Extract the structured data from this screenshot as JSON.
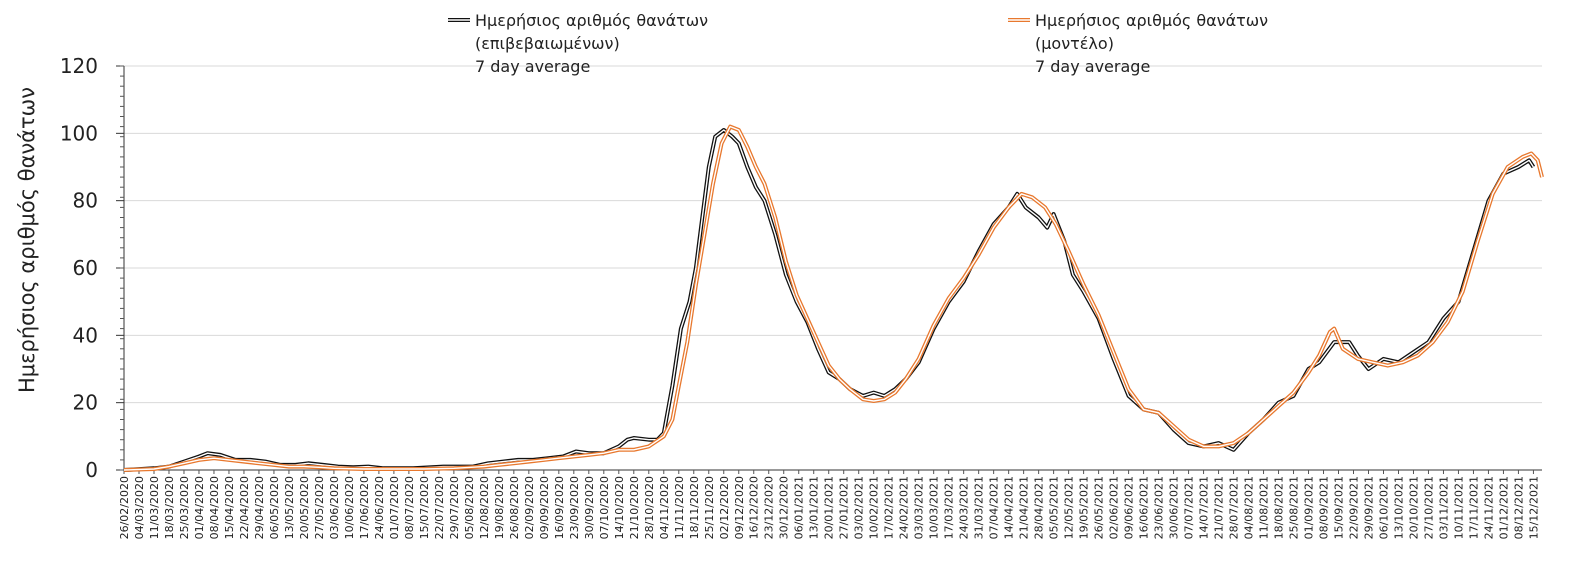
{
  "chart_data": {
    "type": "line",
    "title": "",
    "xlabel": "",
    "ylabel": "Ημερήσιος αριθμός θανάτων",
    "ylim": [
      0,
      120
    ],
    "yticks": [
      0,
      20,
      40,
      60,
      80,
      100,
      120
    ],
    "grid": "horizontal",
    "legend_position": "top",
    "x_start": "26/02/2020",
    "x_end": "19/12/2021",
    "xtick_labels": [
      "26/02/2020",
      "04/03/2020",
      "11/03/2020",
      "18/03/2020",
      "25/03/2020",
      "01/04/2020",
      "08/04/2020",
      "15/04/2020",
      "22/04/2020",
      "29/04/2020",
      "06/05/2020",
      "13/05/2020",
      "20/05/2020",
      "27/05/2020",
      "03/06/2020",
      "10/06/2020",
      "17/06/2020",
      "24/06/2020",
      "01/07/2020",
      "08/07/2020",
      "15/07/2020",
      "22/07/2020",
      "29/07/2020",
      "05/08/2020",
      "12/08/2020",
      "19/08/2020",
      "26/08/2020",
      "02/09/2020",
      "09/09/2020",
      "16/09/2020",
      "23/09/2020",
      "30/09/2020",
      "07/10/2020",
      "14/10/2020",
      "21/10/2020",
      "28/10/2020",
      "04/11/2020",
      "11/11/2020",
      "18/11/2020",
      "25/11/2020",
      "02/12/2020",
      "09/12/2020",
      "16/12/2020",
      "23/12/2020",
      "30/12/2020",
      "06/01/2021",
      "13/01/2021",
      "20/01/2021",
      "27/01/2021",
      "03/02/2021",
      "10/02/2021",
      "17/02/2021",
      "24/02/2021",
      "03/03/2021",
      "10/03/2021",
      "17/03/2021",
      "24/03/2021",
      "31/03/2021",
      "07/04/2021",
      "14/04/2021",
      "21/04/2021",
      "28/04/2021",
      "05/05/2021",
      "12/05/2021",
      "19/05/2021",
      "26/05/2021",
      "02/06/2021",
      "09/06/2021",
      "16/06/2021",
      "23/06/2021",
      "30/06/2021",
      "07/07/2021",
      "14/07/2021",
      "21/07/2021",
      "28/07/2021",
      "04/08/2021",
      "11/08/2021",
      "18/08/2021",
      "25/08/2021",
      "01/09/2021",
      "08/09/2021",
      "15/09/2021",
      "22/09/2021",
      "29/09/2021",
      "06/10/2021",
      "13/10/2021",
      "20/10/2021",
      "27/10/2021",
      "03/11/2021",
      "10/11/2021",
      "17/11/2021",
      "24/11/2021",
      "01/12/2021",
      "08/12/2021",
      "15/12/2021"
    ],
    "series": [
      {
        "name": "Ημερήσιος αριθμός θανάτων (επιβεβαιωμένων) 7 day average",
        "legend_lines": [
          "Ημερήσιος αριθμός θανάτων",
          "(επιβεβαιωμένων)",
          "7 day average"
        ],
        "color": "#111111",
        "style": "double-outline",
        "points": [
          [
            "26/02/2020",
            0
          ],
          [
            "11/03/2020",
            0.5
          ],
          [
            "18/03/2020",
            1
          ],
          [
            "25/03/2020",
            2.5
          ],
          [
            "01/04/2020",
            4
          ],
          [
            "05/04/2020",
            5
          ],
          [
            "11/04/2020",
            4.5
          ],
          [
            "18/04/2020",
            3
          ],
          [
            "25/04/2020",
            3
          ],
          [
            "02/05/2020",
            2.5
          ],
          [
            "09/05/2020",
            1.5
          ],
          [
            "16/05/2020",
            1.5
          ],
          [
            "22/05/2020",
            2
          ],
          [
            "29/05/2020",
            1.5
          ],
          [
            "05/06/2020",
            1
          ],
          [
            "12/06/2020",
            0.8
          ],
          [
            "19/06/2020",
            1
          ],
          [
            "26/06/2020",
            0.5
          ],
          [
            "10/07/2020",
            0.5
          ],
          [
            "24/07/2020",
            1
          ],
          [
            "07/08/2020",
            1
          ],
          [
            "14/08/2020",
            2
          ],
          [
            "21/08/2020",
            2.5
          ],
          [
            "28/08/2020",
            3
          ],
          [
            "04/09/2020",
            3
          ],
          [
            "11/09/2020",
            3.5
          ],
          [
            "18/09/2020",
            4
          ],
          [
            "24/09/2020",
            5.5
          ],
          [
            "30/09/2020",
            5
          ],
          [
            "07/10/2020",
            5
          ],
          [
            "14/10/2020",
            7
          ],
          [
            "18/10/2020",
            9
          ],
          [
            "21/10/2020",
            9.5
          ],
          [
            "28/10/2020",
            9
          ],
          [
            "01/11/2020",
            9
          ],
          [
            "04/11/2020",
            11
          ],
          [
            "08/11/2020",
            25
          ],
          [
            "12/11/2020",
            42
          ],
          [
            "16/11/2020",
            50
          ],
          [
            "19/11/2020",
            60
          ],
          [
            "22/11/2020",
            75
          ],
          [
            "25/11/2020",
            90
          ],
          [
            "28/11/2020",
            99
          ],
          [
            "02/12/2020",
            101
          ],
          [
            "06/12/2020",
            99
          ],
          [
            "09/12/2020",
            97
          ],
          [
            "13/12/2020",
            90
          ],
          [
            "17/12/2020",
            84
          ],
          [
            "21/12/2020",
            80
          ],
          [
            "26/12/2020",
            70
          ],
          [
            "31/12/2020",
            58
          ],
          [
            "05/01/2021",
            50
          ],
          [
            "10/01/2021",
            44
          ],
          [
            "15/01/2021",
            36
          ],
          [
            "20/01/2021",
            29
          ],
          [
            "25/01/2021",
            27
          ],
          [
            "30/01/2021",
            24
          ],
          [
            "05/02/2021",
            22
          ],
          [
            "10/02/2021",
            23
          ],
          [
            "15/02/2021",
            22
          ],
          [
            "20/02/2021",
            24
          ],
          [
            "25/02/2021",
            27
          ],
          [
            "03/03/2021",
            32
          ],
          [
            "10/03/2021",
            42
          ],
          [
            "17/03/2021",
            50
          ],
          [
            "24/03/2021",
            56
          ],
          [
            "31/03/2021",
            65
          ],
          [
            "07/04/2021",
            73
          ],
          [
            "14/04/2021",
            78
          ],
          [
            "18/04/2021",
            82
          ],
          [
            "22/04/2021",
            78
          ],
          [
            "28/04/2021",
            75
          ],
          [
            "02/05/2021",
            72
          ],
          [
            "05/05/2021",
            76
          ],
          [
            "10/05/2021",
            68
          ],
          [
            "14/05/2021",
            58
          ],
          [
            "19/05/2021",
            53
          ],
          [
            "26/05/2021",
            45
          ],
          [
            "02/06/2021",
            33
          ],
          [
            "09/06/2021",
            22
          ],
          [
            "16/06/2021",
            18
          ],
          [
            "23/06/2021",
            17
          ],
          [
            "30/06/2021",
            12
          ],
          [
            "07/07/2021",
            8
          ],
          [
            "14/07/2021",
            7
          ],
          [
            "21/07/2021",
            8
          ],
          [
            "28/07/2021",
            6
          ],
          [
            "04/08/2021",
            11
          ],
          [
            "11/08/2021",
            15
          ],
          [
            "18/08/2021",
            20
          ],
          [
            "25/08/2021",
            22
          ],
          [
            "01/09/2021",
            30
          ],
          [
            "06/09/2021",
            32
          ],
          [
            "13/09/2021",
            38
          ],
          [
            "20/09/2021",
            38
          ],
          [
            "24/09/2021",
            34
          ],
          [
            "29/09/2021",
            30
          ],
          [
            "06/10/2021",
            33
          ],
          [
            "13/10/2021",
            32
          ],
          [
            "20/10/2021",
            35
          ],
          [
            "27/10/2021",
            38
          ],
          [
            "03/11/2021",
            45
          ],
          [
            "10/11/2021",
            50
          ],
          [
            "17/11/2021",
            65
          ],
          [
            "24/11/2021",
            80
          ],
          [
            "01/12/2021",
            88
          ],
          [
            "08/12/2021",
            90
          ],
          [
            "13/12/2021",
            92
          ],
          [
            "15/12/2021",
            90
          ]
        ]
      },
      {
        "name": "Ημερήσιος αριθμός θανάτων (μοντέλο) 7 day average",
        "legend_lines": [
          "Ημερήσιος αριθμός θανάτων",
          "(μοντέλο)",
          "7 day average"
        ],
        "color": "#E8782E",
        "style": "double-outline",
        "points": [
          [
            "26/02/2020",
            0
          ],
          [
            "11/03/2020",
            0.3
          ],
          [
            "18/03/2020",
            1
          ],
          [
            "25/03/2020",
            2
          ],
          [
            "01/04/2020",
            3
          ],
          [
            "08/04/2020",
            3.5
          ],
          [
            "15/04/2020",
            3
          ],
          [
            "22/04/2020",
            2.5
          ],
          [
            "29/04/2020",
            2
          ],
          [
            "06/05/2020",
            1.5
          ],
          [
            "13/05/2020",
            1
          ],
          [
            "20/05/2020",
            1
          ],
          [
            "27/05/2020",
            0.8
          ],
          [
            "03/06/2020",
            0.5
          ],
          [
            "17/06/2020",
            0.3
          ],
          [
            "01/07/2020",
            0.3
          ],
          [
            "15/07/2020",
            0.3
          ],
          [
            "29/07/2020",
            0.5
          ],
          [
            "12/08/2020",
            1
          ],
          [
            "19/08/2020",
            1.5
          ],
          [
            "26/08/2020",
            2
          ],
          [
            "02/09/2020",
            2.5
          ],
          [
            "09/09/2020",
            3
          ],
          [
            "16/09/2020",
            3.5
          ],
          [
            "23/09/2020",
            4
          ],
          [
            "30/09/2020",
            4.5
          ],
          [
            "07/10/2020",
            5
          ],
          [
            "14/10/2020",
            6
          ],
          [
            "21/10/2020",
            6
          ],
          [
            "28/10/2020",
            7
          ],
          [
            "04/11/2020",
            10
          ],
          [
            "08/11/2020",
            15
          ],
          [
            "11/11/2020",
            25
          ],
          [
            "15/11/2020",
            38
          ],
          [
            "19/11/2020",
            55
          ],
          [
            "23/11/2020",
            70
          ],
          [
            "27/11/2020",
            85
          ],
          [
            "01/12/2020",
            97
          ],
          [
            "05/12/2020",
            102
          ],
          [
            "09/12/2020",
            101
          ],
          [
            "13/12/2020",
            96
          ],
          [
            "17/12/2020",
            90
          ],
          [
            "21/12/2020",
            85
          ],
          [
            "26/12/2020",
            75
          ],
          [
            "31/12/2020",
            62
          ],
          [
            "05/01/2021",
            52
          ],
          [
            "10/01/2021",
            45
          ],
          [
            "15/01/2021",
            38
          ],
          [
            "20/01/2021",
            31
          ],
          [
            "25/01/2021",
            27
          ],
          [
            "30/01/2021",
            24
          ],
          [
            "05/02/2021",
            21
          ],
          [
            "10/02/2021",
            20.5
          ],
          [
            "15/02/2021",
            21
          ],
          [
            "20/02/2021",
            23
          ],
          [
            "25/02/2021",
            27
          ],
          [
            "03/03/2021",
            33
          ],
          [
            "10/03/2021",
            43
          ],
          [
            "17/03/2021",
            51
          ],
          [
            "24/03/2021",
            57
          ],
          [
            "31/03/2021",
            64
          ],
          [
            "07/04/2021",
            72
          ],
          [
            "14/04/2021",
            78
          ],
          [
            "20/04/2021",
            82
          ],
          [
            "25/04/2021",
            81
          ],
          [
            "01/05/2021",
            78
          ],
          [
            "06/05/2021",
            73
          ],
          [
            "12/05/2021",
            65
          ],
          [
            "19/05/2021",
            55
          ],
          [
            "26/05/2021",
            46
          ],
          [
            "02/06/2021",
            35
          ],
          [
            "09/06/2021",
            24
          ],
          [
            "16/06/2021",
            18
          ],
          [
            "23/06/2021",
            17
          ],
          [
            "30/06/2021",
            13
          ],
          [
            "07/07/2021",
            9
          ],
          [
            "14/07/2021",
            7
          ],
          [
            "21/07/2021",
            7
          ],
          [
            "28/07/2021",
            8
          ],
          [
            "04/08/2021",
            11
          ],
          [
            "11/08/2021",
            15
          ],
          [
            "18/08/2021",
            19
          ],
          [
            "25/08/2021",
            23
          ],
          [
            "01/09/2021",
            29
          ],
          [
            "06/09/2021",
            34
          ],
          [
            "11/09/2021",
            41
          ],
          [
            "13/09/2021",
            42
          ],
          [
            "17/09/2021",
            36
          ],
          [
            "24/09/2021",
            33
          ],
          [
            "01/10/2021",
            32
          ],
          [
            "08/10/2021",
            31
          ],
          [
            "15/10/2021",
            32
          ],
          [
            "22/10/2021",
            34
          ],
          [
            "29/10/2021",
            38
          ],
          [
            "05/11/2021",
            44
          ],
          [
            "12/11/2021",
            53
          ],
          [
            "19/11/2021",
            68
          ],
          [
            "26/11/2021",
            82
          ],
          [
            "03/12/2021",
            90
          ],
          [
            "10/12/2021",
            93
          ],
          [
            "14/12/2021",
            94
          ],
          [
            "17/12/2021",
            92
          ],
          [
            "19/12/2021",
            87
          ]
        ]
      }
    ]
  }
}
